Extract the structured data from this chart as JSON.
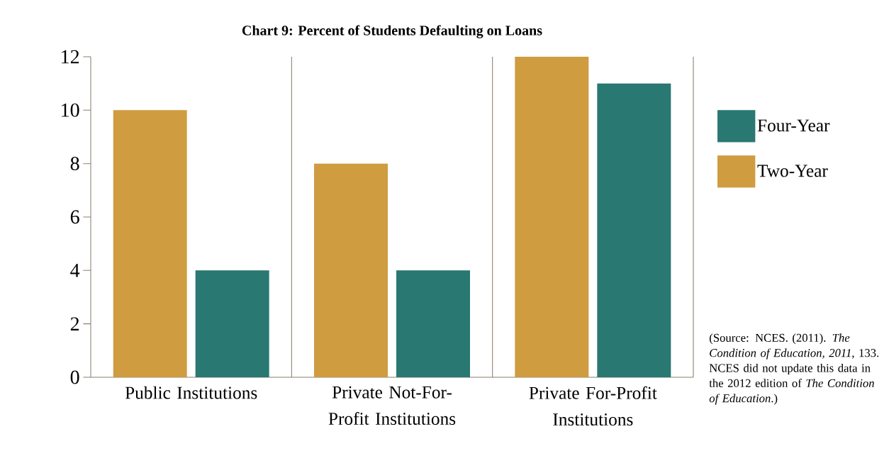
{
  "chart_data": {
    "type": "bar",
    "title": "Chart 9: Percent of Students Defaulting on Loans",
    "categories": [
      "Public Institutions",
      "Private Not-For-Profit Institutions",
      "Private For-Profit Institutions"
    ],
    "series": [
      {
        "name": "Two-Year",
        "color": "#cf9c40",
        "values": [
          10,
          8,
          12
        ]
      },
      {
        "name": "Four-Year",
        "color": "#2a7872",
        "values": [
          4,
          4,
          11
        ]
      }
    ],
    "ylim": [
      0,
      12
    ],
    "yticks": [
      0,
      2,
      4,
      6,
      8,
      10,
      12
    ],
    "grid": "x",
    "legend": "right",
    "annotations": [
      "(Source: NCES. (2011). *The Condition of Education, 2011*, 133. NCES did not update this data in the 2012 edition of *The Condition of Education*.)"
    ]
  }
}
